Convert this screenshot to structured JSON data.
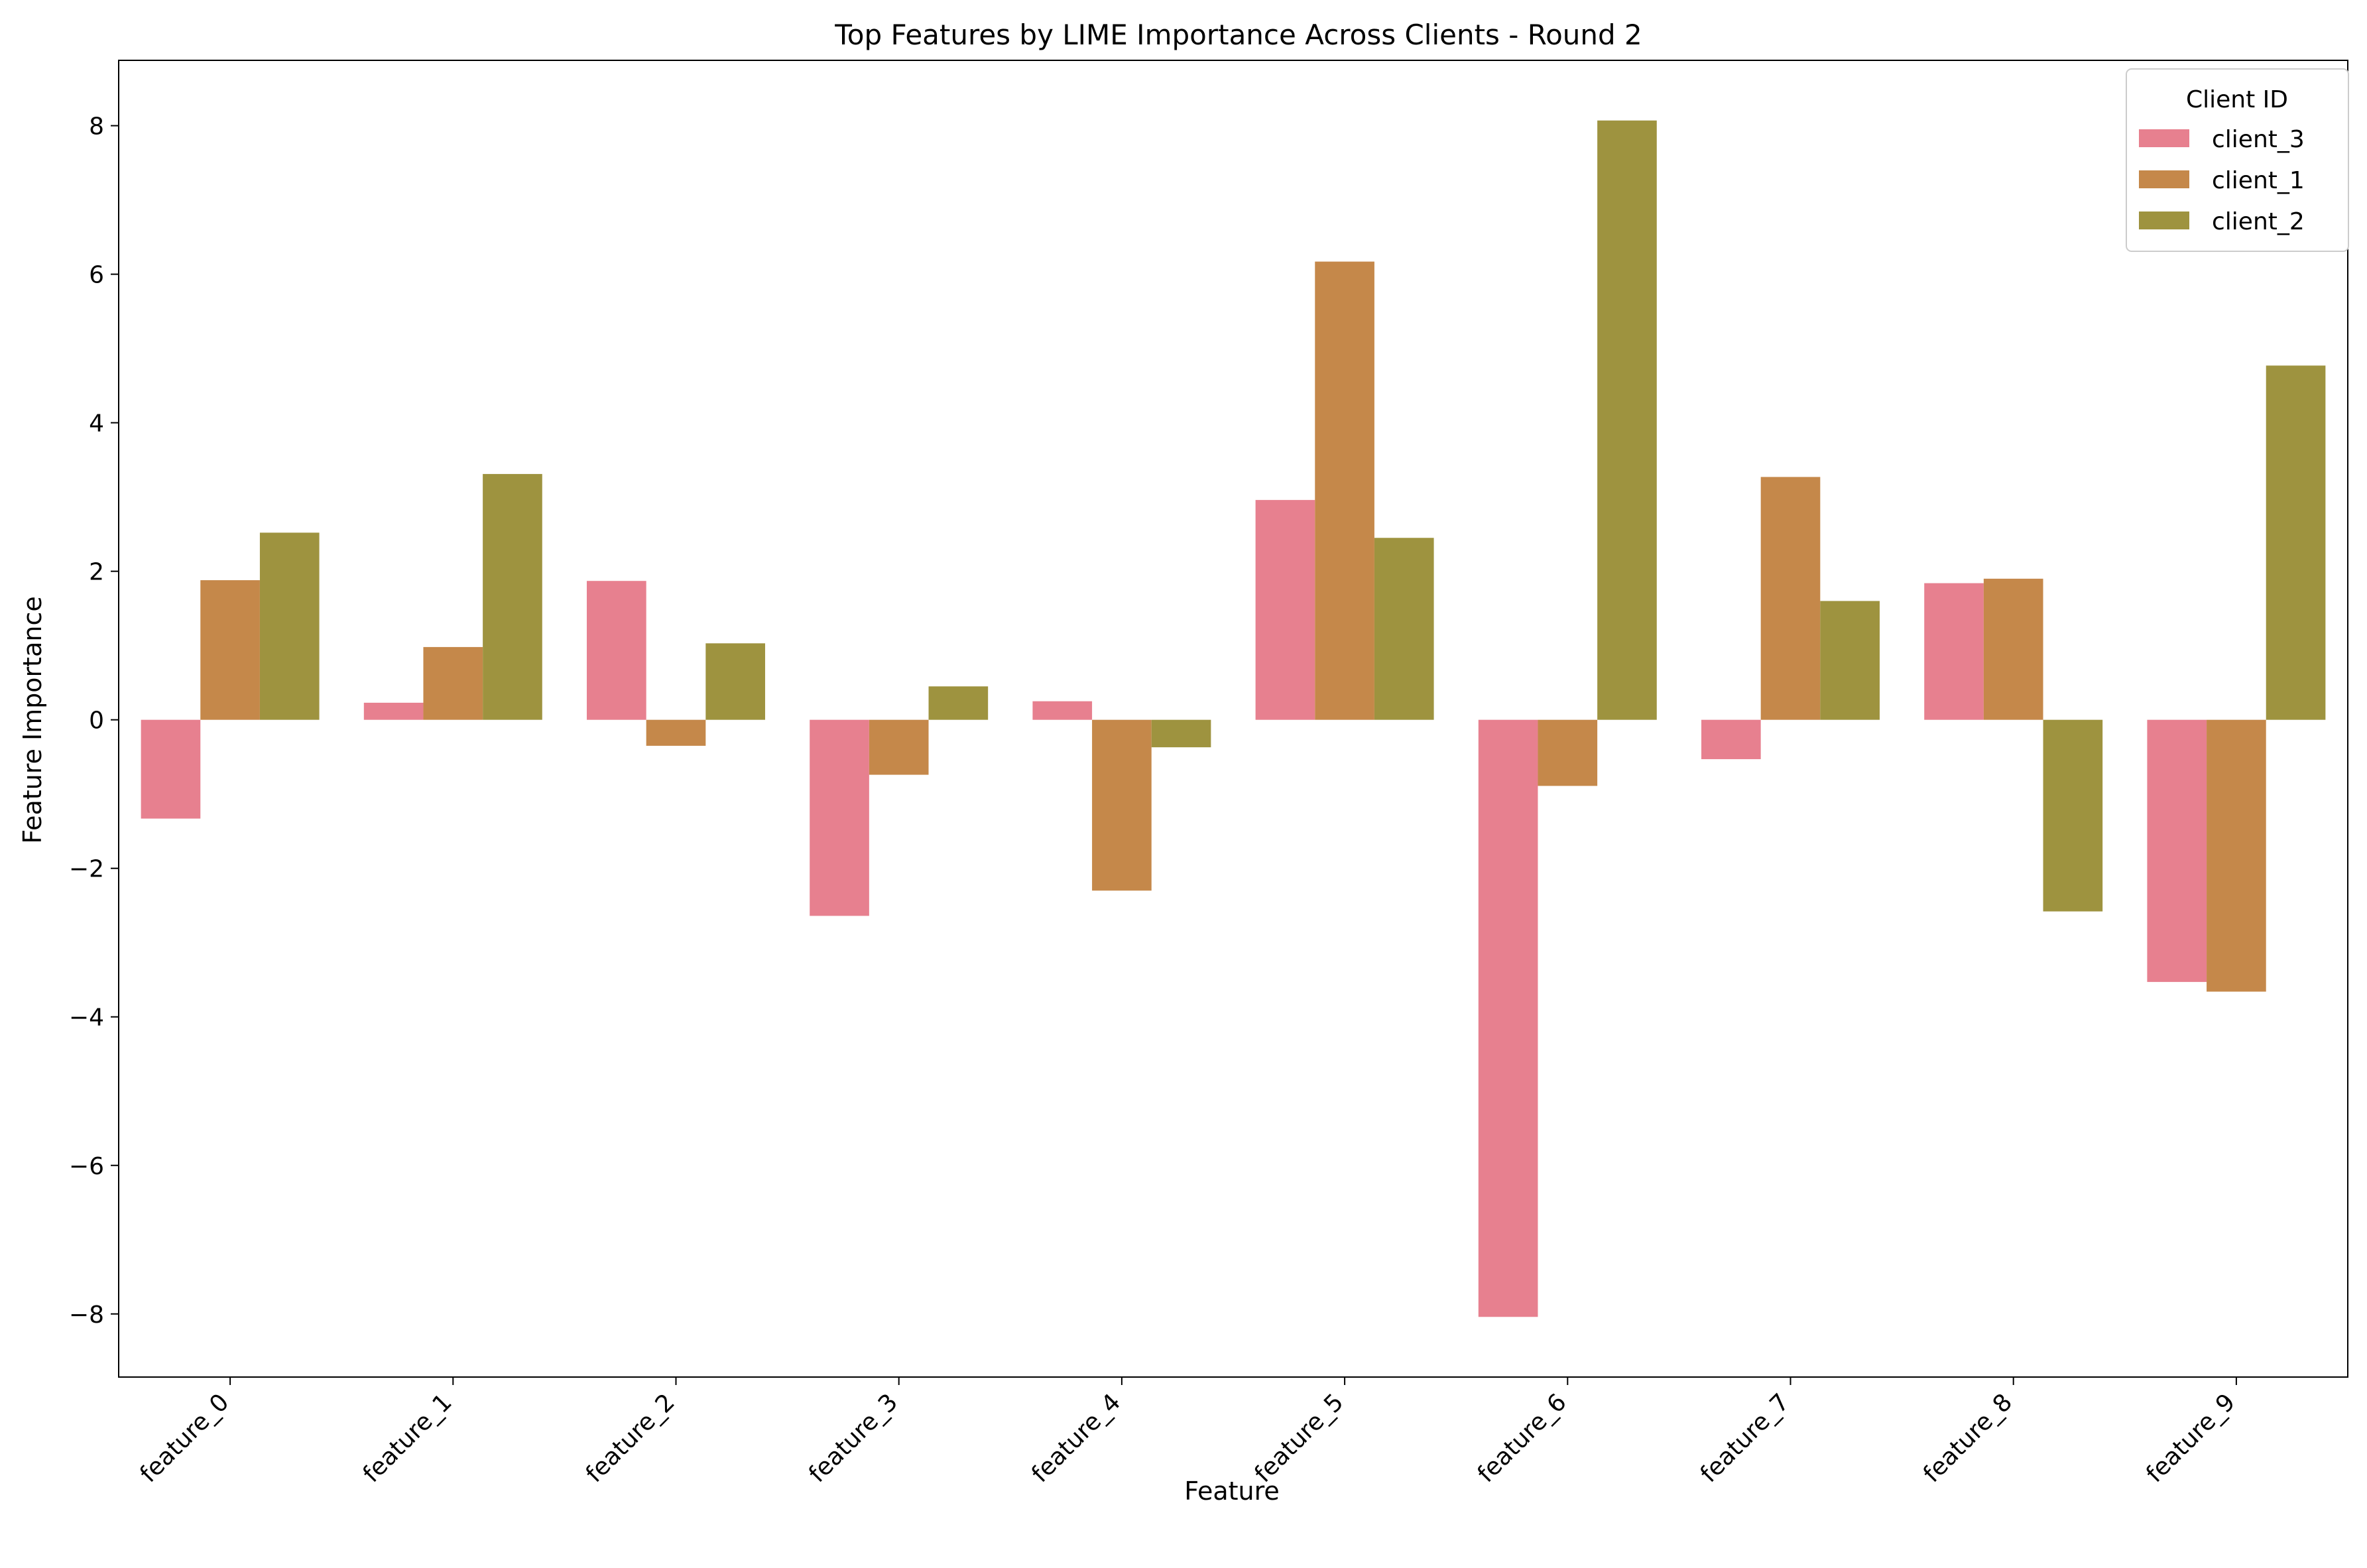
{
  "chart_data": {
    "type": "bar",
    "title": "Top Features by LIME Importance Across Clients - Round 2",
    "xlabel": "Feature",
    "ylabel": "Feature Importance",
    "categories": [
      "feature_0",
      "feature_1",
      "feature_2",
      "feature_3",
      "feature_4",
      "feature_5",
      "feature_6",
      "feature_7",
      "feature_8",
      "feature_9"
    ],
    "ylim": [
      -8.85,
      8.88
    ],
    "yticks": [
      -8,
      -6,
      -4,
      -2,
      0,
      2,
      4,
      6,
      8
    ],
    "ytick_labels": [
      "−8",
      "−6",
      "−4",
      "−2",
      "0",
      "2",
      "4",
      "6",
      "8"
    ],
    "grid": false,
    "legend": {
      "title": "Client ID",
      "position": "top-right"
    },
    "series": [
      {
        "name": "client_3",
        "color": "#e7808f",
        "values": [
          -1.33,
          0.23,
          1.87,
          -2.64,
          0.25,
          2.96,
          -8.04,
          -0.53,
          1.84,
          -3.53
        ]
      },
      {
        "name": "client_1",
        "color": "#c5884a",
        "values": [
          1.88,
          0.98,
          -0.35,
          -0.74,
          -2.3,
          6.17,
          -0.89,
          3.27,
          1.9,
          -3.66
        ]
      },
      {
        "name": "client_2",
        "color": "#9e933f",
        "values": [
          2.52,
          3.31,
          1.03,
          0.45,
          -0.37,
          2.45,
          8.07,
          1.6,
          -2.58,
          4.77
        ]
      }
    ]
  }
}
